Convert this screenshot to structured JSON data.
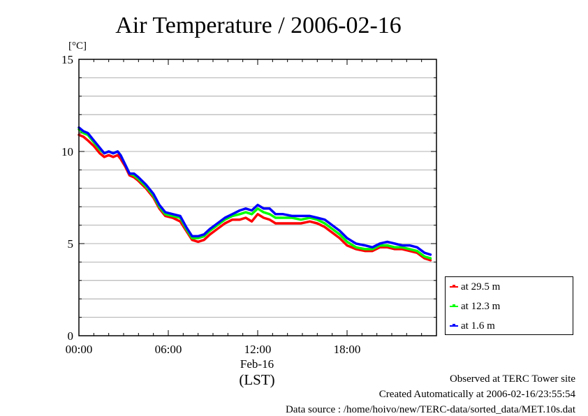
{
  "chart_data": {
    "type": "line",
    "title": "Air Temperature / 2006-02-16",
    "ylabel": "[°C]",
    "xlabel_date": "Feb-16",
    "xlabel_unit": "(LST)",
    "ylim": [
      0,
      15
    ],
    "xlim": [
      0,
      24
    ],
    "yticks": [
      0,
      5,
      10,
      15
    ],
    "xticks": [
      {
        "value": 0,
        "label": "00:00"
      },
      {
        "value": 6,
        "label": "06:00"
      },
      {
        "value": 12,
        "label": "12:00"
      },
      {
        "value": 18,
        "label": "18:00"
      }
    ],
    "grid": true,
    "legend_position": "bottom-right outside",
    "series": [
      {
        "name": "at 29.5 m",
        "color": "#ff0000",
        "x": [
          0,
          0.3,
          0.6,
          1.0,
          1.4,
          1.7,
          2.0,
          2.3,
          2.6,
          2.8,
          3.1,
          3.4,
          3.7,
          4.0,
          4.5,
          5.0,
          5.4,
          5.8,
          6.3,
          6.8,
          7.2,
          7.6,
          8.0,
          8.4,
          8.8,
          9.3,
          9.8,
          10.3,
          10.8,
          11.2,
          11.6,
          12.0,
          12.4,
          12.8,
          13.2,
          13.7,
          14.3,
          14.9,
          15.5,
          16.0,
          16.5,
          17.0,
          17.5,
          18.0,
          18.6,
          19.2,
          19.7,
          20.2,
          20.7,
          21.2,
          21.7,
          22.2,
          22.7,
          23.2,
          23.6
        ],
        "values": [
          10.9,
          10.8,
          10.6,
          10.3,
          9.9,
          9.7,
          9.8,
          9.7,
          9.8,
          9.6,
          9.2,
          8.7,
          8.6,
          8.4,
          8.0,
          7.5,
          6.9,
          6.5,
          6.4,
          6.2,
          5.7,
          5.2,
          5.1,
          5.2,
          5.5,
          5.8,
          6.1,
          6.3,
          6.3,
          6.4,
          6.2,
          6.6,
          6.4,
          6.3,
          6.1,
          6.1,
          6.1,
          6.1,
          6.2,
          6.1,
          5.9,
          5.6,
          5.3,
          4.9,
          4.7,
          4.6,
          4.6,
          4.8,
          4.8,
          4.7,
          4.7,
          4.6,
          4.5,
          4.2,
          4.1
        ]
      },
      {
        "name": "at 12.3 m",
        "color": "#00ff00",
        "x": [
          0,
          0.3,
          0.6,
          1.0,
          1.4,
          1.7,
          2.0,
          2.3,
          2.6,
          2.8,
          3.1,
          3.4,
          3.7,
          4.0,
          4.5,
          5.0,
          5.4,
          5.8,
          6.3,
          6.8,
          7.2,
          7.6,
          8.0,
          8.4,
          8.8,
          9.3,
          9.8,
          10.3,
          10.8,
          11.2,
          11.6,
          12.0,
          12.4,
          12.8,
          13.2,
          13.7,
          14.3,
          14.9,
          15.5,
          16.0,
          16.5,
          17.0,
          17.5,
          18.0,
          18.6,
          19.2,
          19.7,
          20.2,
          20.7,
          21.2,
          21.7,
          22.2,
          22.7,
          23.2,
          23.6
        ],
        "values": [
          11.2,
          11.0,
          10.9,
          10.5,
          10.1,
          9.9,
          10.0,
          9.9,
          10.0,
          9.8,
          9.3,
          8.8,
          8.7,
          8.5,
          8.1,
          7.6,
          7.0,
          6.6,
          6.5,
          6.4,
          5.8,
          5.3,
          5.3,
          5.4,
          5.7,
          6.0,
          6.3,
          6.5,
          6.6,
          6.7,
          6.6,
          6.9,
          6.7,
          6.6,
          6.4,
          6.4,
          6.4,
          6.3,
          6.4,
          6.3,
          6.1,
          5.8,
          5.5,
          5.1,
          4.8,
          4.7,
          4.7,
          4.9,
          4.9,
          4.8,
          4.8,
          4.7,
          4.6,
          4.3,
          4.2
        ]
      },
      {
        "name": "at 1.6 m",
        "color": "#0000ff",
        "x": [
          0,
          0.3,
          0.6,
          1.0,
          1.4,
          1.7,
          2.0,
          2.3,
          2.6,
          2.8,
          3.1,
          3.4,
          3.7,
          4.0,
          4.5,
          5.0,
          5.4,
          5.8,
          6.3,
          6.8,
          7.2,
          7.6,
          8.0,
          8.4,
          8.8,
          9.3,
          9.8,
          10.3,
          10.8,
          11.2,
          11.6,
          12.0,
          12.4,
          12.8,
          13.2,
          13.7,
          14.3,
          14.9,
          15.5,
          16.0,
          16.5,
          17.0,
          17.5,
          18.0,
          18.6,
          19.2,
          19.7,
          20.2,
          20.7,
          21.2,
          21.7,
          22.2,
          22.7,
          23.2,
          23.6
        ],
        "values": [
          11.3,
          11.1,
          11.0,
          10.6,
          10.2,
          9.9,
          10.0,
          9.9,
          10.0,
          9.8,
          9.3,
          8.8,
          8.8,
          8.6,
          8.2,
          7.7,
          7.1,
          6.7,
          6.6,
          6.5,
          5.9,
          5.4,
          5.4,
          5.5,
          5.8,
          6.1,
          6.4,
          6.6,
          6.8,
          6.9,
          6.8,
          7.1,
          6.9,
          6.9,
          6.6,
          6.6,
          6.5,
          6.5,
          6.5,
          6.4,
          6.3,
          6.0,
          5.7,
          5.3,
          5.0,
          4.9,
          4.8,
          5.0,
          5.1,
          5.0,
          4.9,
          4.9,
          4.8,
          4.5,
          4.4
        ]
      }
    ]
  },
  "footer": {
    "line1": "Observed at TERC Tower site",
    "line2": "Created Automatically at 2006-02-16/23:55:54",
    "line3": "Data source : /home/hoivo/new/TERC-data/sorted_data/MET.10s.dat"
  }
}
